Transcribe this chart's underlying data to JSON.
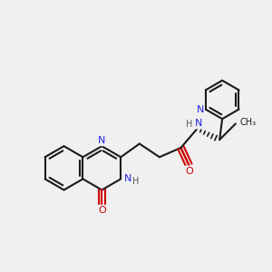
{
  "bg_color": "#f0f0f0",
  "bond_color": "#1a1a1a",
  "N_color": "#2222ee",
  "O_color": "#cc0000",
  "bond_width": 1.5,
  "figsize": [
    3.0,
    3.0
  ],
  "dpi": 100,
  "xlim": [
    0,
    10
  ],
  "ylim": [
    0,
    10
  ]
}
